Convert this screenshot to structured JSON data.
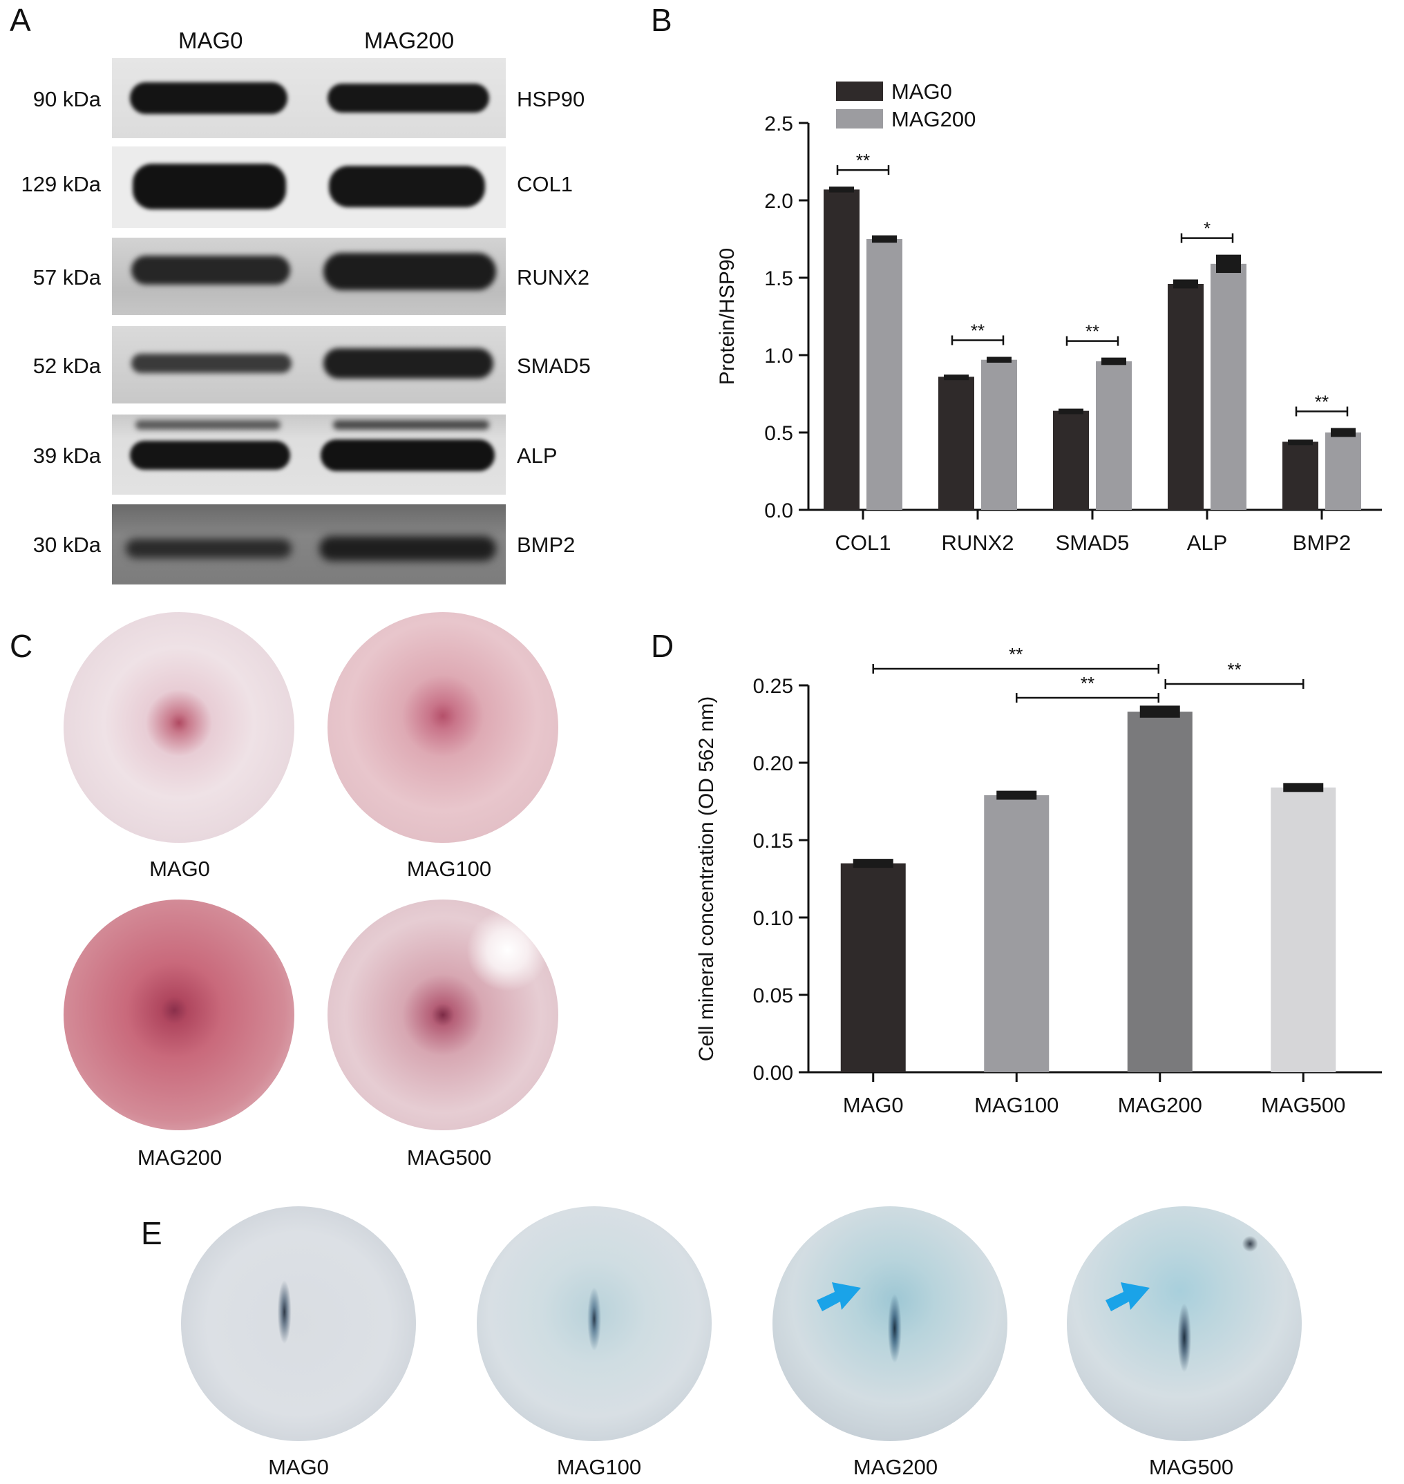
{
  "panels": {
    "A": "A",
    "B": "B",
    "C": "C",
    "D": "D",
    "E": "E"
  },
  "western_blot": {
    "lanes": [
      "MAG0",
      "MAG200"
    ],
    "rows": [
      {
        "kda": "90 kDa",
        "protein": "HSP90"
      },
      {
        "kda": "129 kDa",
        "protein": "COL1"
      },
      {
        "kda": "57 kDa",
        "protein": "RUNX2"
      },
      {
        "kda": "52 kDa",
        "protein": "SMAD5"
      },
      {
        "kda": "39 kDa",
        "protein": "ALP"
      },
      {
        "kda": "30 kDa",
        "protein": "BMP2"
      }
    ]
  },
  "ars_staining": {
    "labels": [
      "MAG0",
      "MAG100",
      "MAG200",
      "MAG500"
    ]
  },
  "alp_staining": {
    "labels": [
      "MAG0",
      "MAG100",
      "MAG200",
      "MAG500"
    ],
    "arrow_color": "#1aa3e8"
  },
  "chart_data": [
    {
      "type": "bar",
      "panel": "B",
      "categories": [
        "COL1",
        "RUNX2",
        "SMAD5",
        "ALP",
        "BMP2"
      ],
      "series": [
        {
          "name": "MAG0",
          "color": "#2f2a2a",
          "values": [
            2.07,
            0.86,
            0.64,
            1.46,
            0.44
          ],
          "errors": [
            0.01,
            0.005,
            0.005,
            0.02,
            0.005
          ]
        },
        {
          "name": "MAG200",
          "color": "#9c9ca0",
          "values": [
            1.75,
            0.97,
            0.96,
            1.59,
            0.5
          ],
          "errors": [
            0.015,
            0.01,
            0.015,
            0.05,
            0.02
          ]
        }
      ],
      "significance": [
        "**",
        "**",
        "**",
        "*",
        "**"
      ],
      "ylabel": "Protein/HSP90",
      "ylim": [
        0,
        2.5
      ],
      "yticks": [
        "0.0",
        "0.5",
        "1.0",
        "1.5",
        "2.0",
        "2.5"
      ],
      "legend": "top-left"
    },
    {
      "type": "bar",
      "panel": "D",
      "categories": [
        "MAG0",
        "MAG100",
        "MAG200",
        "MAG500"
      ],
      "values": [
        0.135,
        0.179,
        0.233,
        0.184
      ],
      "errors": [
        0.002,
        0.002,
        0.003,
        0.002
      ],
      "colors": [
        "#2f2a2a",
        "#9c9ca0",
        "#7a7a7c",
        "#d6d6d8"
      ],
      "ylabel": "Cell mineral concentration (OD 562 nm)",
      "ylim": [
        0,
        0.25
      ],
      "yticks": [
        "0.00",
        "0.05",
        "0.10",
        "0.15",
        "0.20",
        "0.25"
      ],
      "comparisons": [
        {
          "from": "MAG0",
          "to": "MAG200",
          "label": "**"
        },
        {
          "from": "MAG100",
          "to": "MAG200",
          "label": "**"
        },
        {
          "from": "MAG200",
          "to": "MAG500",
          "label": "**"
        }
      ]
    }
  ]
}
